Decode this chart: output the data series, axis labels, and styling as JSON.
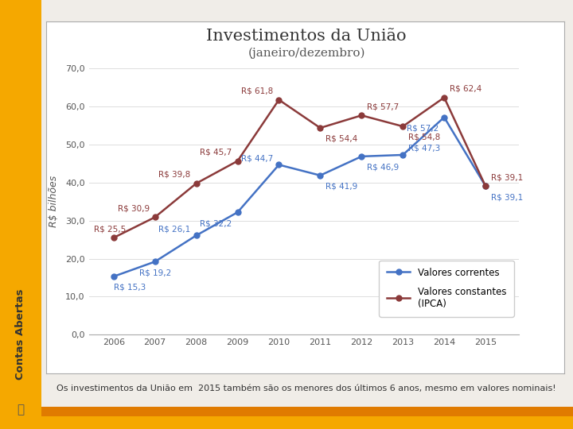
{
  "title": "Investimentos da União",
  "subtitle": "(janeiro/dezembro)",
  "ylabel": "R$ bilhões",
  "caption": "Os investimentos da União em  2015 também são os menores dos últimos 6 anos, mesmo em valores nominais!",
  "years": [
    2006,
    2007,
    2008,
    2009,
    2010,
    2011,
    2012,
    2013,
    2014,
    2015
  ],
  "valores_correntes": [
    15.3,
    19.2,
    26.1,
    32.2,
    44.7,
    41.9,
    46.9,
    47.3,
    57.2,
    39.1
  ],
  "valores_constantes": [
    25.5,
    30.9,
    39.8,
    45.7,
    61.8,
    54.4,
    57.7,
    54.8,
    62.4,
    39.1
  ],
  "correntes_labels": [
    "R$ 15,3",
    "R$ 19,2",
    "R$ 26,1",
    "R$ 32,2",
    "R$ 44,7",
    "R$ 41,9",
    "R$ 46,9",
    "R$ 47,3",
    "R$ 57,2",
    "R$ 39,1"
  ],
  "constantes_labels": [
    "R$ 25,5",
    "R$ 30,9",
    "R$ 39,8",
    "R$ 45,7",
    "R$ 61,8",
    "R$ 54,4",
    "R$ 57,7",
    "R$ 54,8",
    "R$ 62,4",
    "R$ 39,1"
  ],
  "correntes_color": "#4472C4",
  "constantes_color": "#8B3A3A",
  "ylim": [
    0,
    70
  ],
  "yticks": [
    0,
    10,
    20,
    30,
    40,
    50,
    60,
    70
  ],
  "ytick_labels": [
    "0,0",
    "10,0",
    "20,0",
    "30,0",
    "40,0",
    "50,0",
    "60,0",
    "70,0"
  ],
  "outer_bg": "#F0EDE8",
  "chart_bg": "#FFFFFF",
  "sidebar_color": "#F5A800",
  "strip_color1": "#F5A800",
  "strip_color2": "#E07B00",
  "grid_color": "#DDDDDD",
  "title_fontsize": 15,
  "subtitle_fontsize": 11,
  "label_fontsize": 7.5,
  "axis_fontsize": 8,
  "legend_correntes": "Valores correntes",
  "legend_constantes": "Valores constantes\n(IPCA)"
}
